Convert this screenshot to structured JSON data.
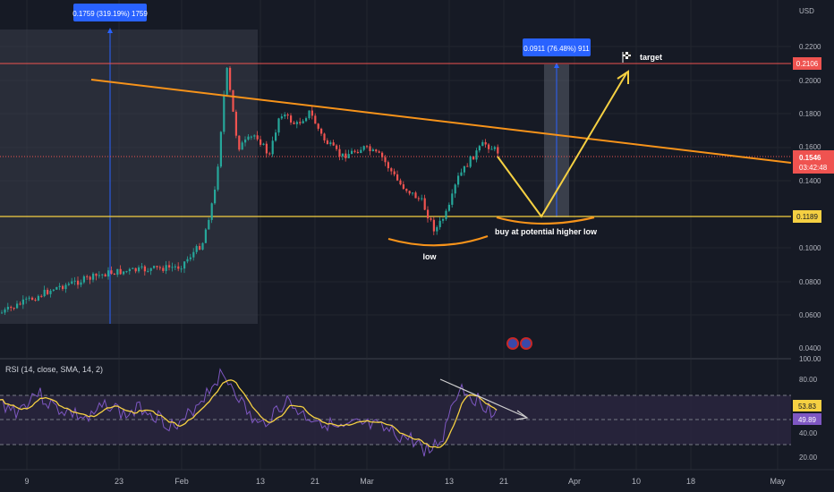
{
  "chart_data": [
    {
      "type": "candlestick",
      "currency_label": "USD",
      "y_ticks": [
        "0.2200",
        "0.2000",
        "0.1800",
        "0.1600",
        "0.1400",
        "0.1000",
        "0.0800",
        "0.0600",
        "0.0400"
      ],
      "x_ticks": [
        "9",
        "23",
        "Feb",
        "13",
        "21",
        "Mar",
        "13",
        "21",
        "Apr",
        "10",
        "18",
        "May"
      ],
      "price_badges": {
        "resistance": "0.2106",
        "current": "0.1546",
        "countdown": "03:42:48",
        "support": "0.1189"
      },
      "measure_labels": {
        "left": "0.1759 (319.19%) 1759",
        "right": "0.0911 (76.48%) 911"
      },
      "annotations": {
        "target": "target",
        "low": "low",
        "higher_low": "buy at potential higher low"
      },
      "colors": {
        "background": "#161a25",
        "up": "#26a69a",
        "down": "#ef5350",
        "trendline": "#f7931a",
        "support": "#f5d042",
        "resistance": "#ef5350",
        "projection": "#f5d042",
        "measure_badge": "#2962ff"
      }
    },
    {
      "type": "line",
      "indicator_label": "RSI (14, close, SMA, 14, 2)",
      "y_ticks": [
        "100.00",
        "80.00",
        "40.00",
        "20.00"
      ],
      "badges": {
        "rsi_ma": "53.83",
        "rsi": "49.89"
      },
      "colors": {
        "rsi": "#7e57c2",
        "ma": "#f5d042",
        "band": "#2a2540"
      }
    }
  ]
}
